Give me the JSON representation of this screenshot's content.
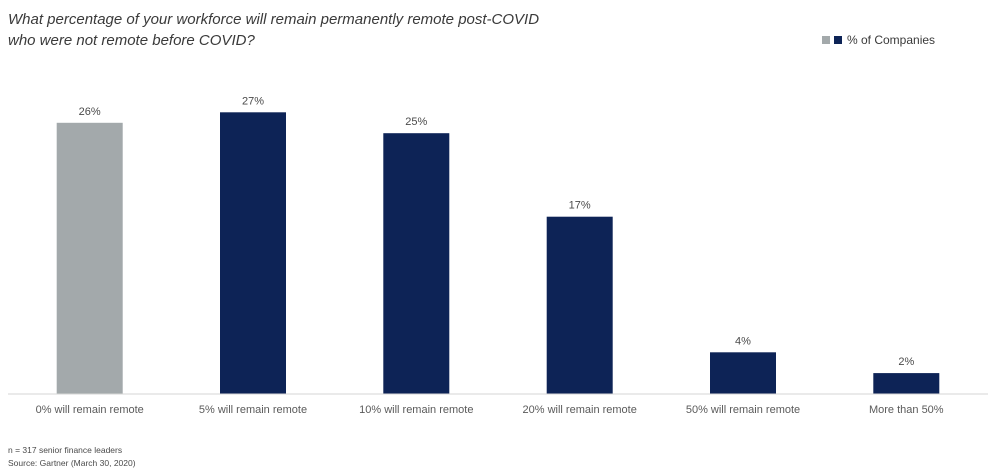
{
  "chart_data": {
    "type": "bar",
    "title_lines": [
      "What percentage of your workforce will remain permanently remote post-COVID",
      "who were not remote before COVID?"
    ],
    "categories": [
      "0% will remain remote",
      "5% will remain remote",
      "10% will remain remote",
      "20% will remain remote",
      "50% will remain remote",
      "More than 50%"
    ],
    "series": [
      {
        "name": "% of Companies",
        "values": [
          26,
          27,
          25,
          17,
          4,
          2
        ]
      }
    ],
    "data_labels": [
      "26%",
      "27%",
      "25%",
      "17%",
      "4%",
      "2%"
    ],
    "bar_colors": [
      "#a3a9ab",
      "#0d2356",
      "#0d2356",
      "#0d2356",
      "#0d2356",
      "#0d2356"
    ],
    "legend": {
      "position": "top-right",
      "label": "% of Companies",
      "swatch_colors": [
        "#a3a9ab",
        "#0d2356"
      ]
    },
    "ylim": [
      0,
      27.8
    ],
    "grid": false,
    "baseline_color": "#d6d6d6",
    "footnotes": [
      "n = 317 senior finance leaders",
      "Source: Gartner (March 30, 2020)"
    ]
  }
}
